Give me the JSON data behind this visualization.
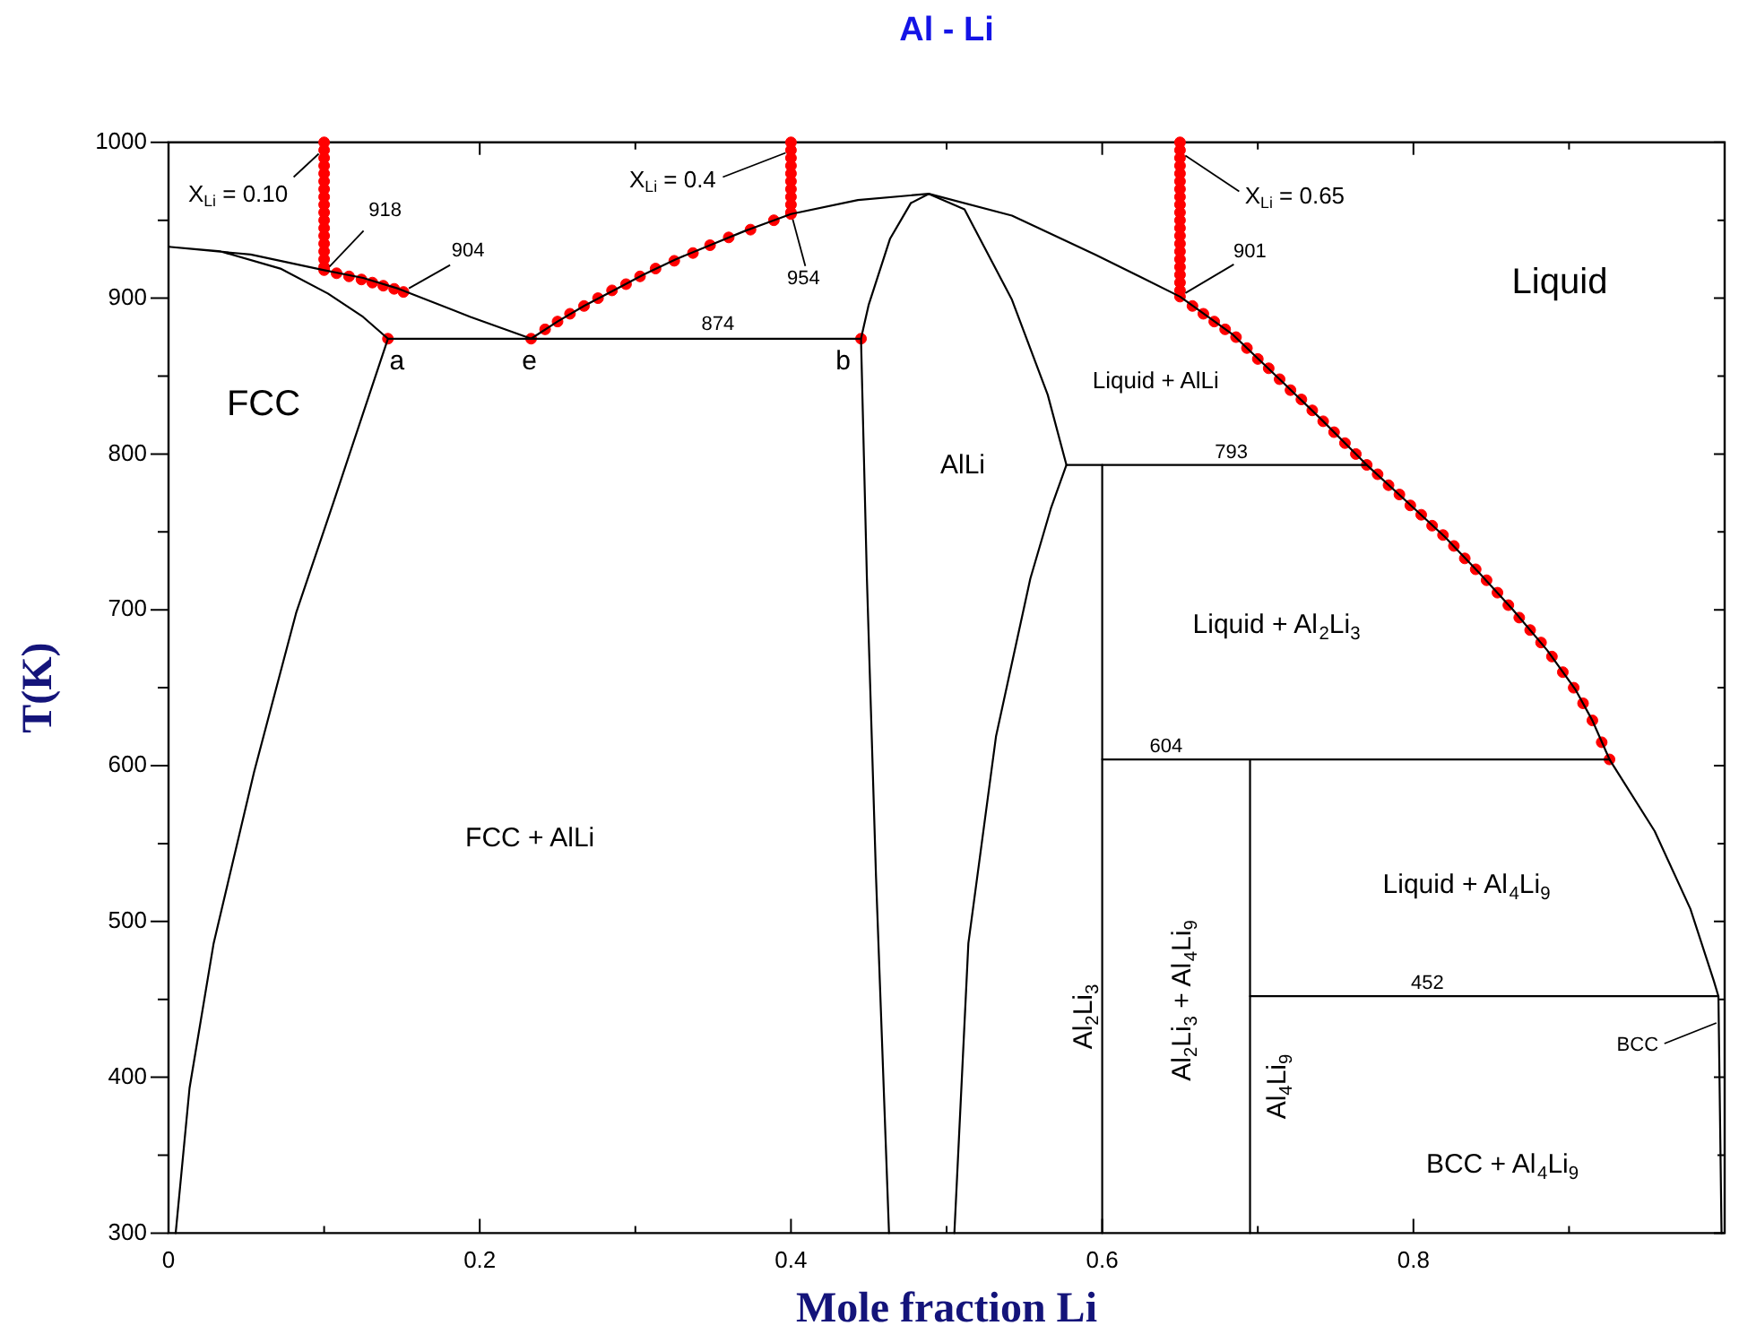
{
  "chart_data": {
    "type": "line",
    "title": "Al - Li",
    "xlabel": "Mole fraction Li",
    "ylabel": "T(K)",
    "xlim": [
      0,
      1
    ],
    "ylim": [
      300,
      1000
    ],
    "xticks": [
      0,
      {
        "value": 0.1,
        "label": null
      },
      0.2,
      {
        "value": 0.3,
        "label": null
      },
      0.4,
      {
        "value": 0.5,
        "label": null
      },
      0.6,
      {
        "value": 0.7,
        "label": null
      },
      0.8,
      {
        "value": 0.9,
        "label": null
      },
      {
        "value": 1,
        "label": null
      }
    ],
    "yticks": [
      300,
      {
        "value": 350,
        "label": null
      },
      400,
      {
        "value": 450,
        "label": null
      },
      500,
      {
        "value": 550,
        "label": null
      },
      600,
      {
        "value": 650,
        "label": null
      },
      700,
      {
        "value": 750,
        "label": null
      },
      800,
      {
        "value": 850,
        "label": null
      },
      900,
      {
        "value": 950,
        "label": null
      },
      1000
    ],
    "series": [
      {
        "color": "#000000",
        "x": [
          0.0046,
          0.0135,
          0.029,
          0.055,
          0.082,
          0.106,
          0.141,
          0.125,
          0.1024,
          0.0719,
          0.0336,
          0,
          0.0528,
          0.1,
          0.125,
          0.148,
          0.194,
          0.233,
          0.25,
          0.267,
          0.286,
          0.305,
          0.326,
          0.348,
          0.37,
          0.389,
          0.4,
          0.443,
          0.4885,
          0.542,
          0.5955,
          0.65,
          0.6835,
          0.714,
          0.741,
          0.77,
          0.794,
          0.82,
          0.842,
          0.864,
          0.886,
          0.904,
          0.915,
          0.926,
          0.955,
          0.978,
          0.993,
          0.996
        ],
        "values": [
          300,
          393,
          486,
          596,
          698,
          769,
          874,
          888,
          903,
          919,
          930,
          933,
          928,
          918,
          913,
          906,
          888,
          874,
          885,
          895,
          905,
          915,
          925,
          934,
          943,
          950,
          954,
          963,
          967,
          953,
          928,
          901,
          877,
          848,
          822,
          793,
          771,
          747,
          724,
          700,
          674,
          649,
          629,
          604,
          558,
          508,
          462,
          452
        ]
      },
      {
        "color": "#000000",
        "x": [
          0.463,
          0.4546,
          0.4488,
          0.445,
          0.45,
          0.4636,
          0.477,
          0.4885,
          0.5115,
          0.542,
          0.565,
          0.577,
          0.567,
          0.5538,
          0.5318,
          0.514,
          0.505
        ],
        "values": [
          300,
          530,
          720,
          874,
          896,
          938,
          961,
          967,
          957,
          899,
          838,
          793,
          765,
          720,
          619,
          486,
          300
        ]
      },
      {
        "color": "#000000",
        "x": [
          0.141,
          0.445
        ],
        "values": [
          874,
          874
        ]
      },
      {
        "color": "#000000",
        "x": [
          0.577,
          0.77
        ],
        "values": [
          793,
          793
        ]
      },
      {
        "color": "#000000",
        "x": [
          0.6,
          0.6
        ],
        "values": [
          793,
          300
        ]
      },
      {
        "color": "#000000",
        "x": [
          0.6,
          0.926
        ],
        "values": [
          604,
          604
        ]
      },
      {
        "color": "#000000",
        "x": [
          0.695,
          0.695
        ],
        "values": [
          604,
          300
        ]
      },
      {
        "color": "#000000",
        "x": [
          0.695,
          0.996,
          0.998
        ],
        "values": [
          452,
          452,
          300
        ]
      },
      {
        "type": "scatter",
        "color": "#ff0000",
        "marker": "circle",
        "x": [
          0.1,
          0.1,
          0.1,
          0.1,
          0.1,
          0.1,
          0.1,
          0.1,
          0.1,
          0.1,
          0.1,
          0.1,
          0.1,
          0.1,
          0.1,
          0.1,
          0.1,
          0.1,
          0.108,
          0.116,
          0.124,
          0.131,
          0.138,
          0.145,
          0.151,
          0.141,
          0.233,
          0.445,
          0.242,
          0.25,
          0.258,
          0.267,
          0.276,
          0.285,
          0.294,
          0.303,
          0.313,
          0.325,
          0.337,
          0.348,
          0.36,
          0.374,
          0.389,
          0.4,
          0.4,
          0.4,
          0.4,
          0.4,
          0.4,
          0.4,
          0.4,
          0.4,
          0.4,
          0.4,
          0.65,
          0.65,
          0.65,
          0.65,
          0.65,
          0.65,
          0.65,
          0.65,
          0.65,
          0.65,
          0.65,
          0.65,
          0.65,
          0.65,
          0.65,
          0.65,
          0.65,
          0.65,
          0.65,
          0.65,
          0.65,
          0.658,
          0.665,
          0.672,
          0.679,
          0.686,
          0.693,
          0.7,
          0.707,
          0.714,
          0.721,
          0.728,
          0.735,
          0.742,
          0.749,
          0.756,
          0.763,
          0.77,
          0.777,
          0.784,
          0.791,
          0.798,
          0.805,
          0.812,
          0.819,
          0.826,
          0.833,
          0.84,
          0.847,
          0.854,
          0.861,
          0.868,
          0.875,
          0.882,
          0.889,
          0.896,
          0.903,
          0.909,
          0.915,
          0.921,
          0.926
        ],
        "values": [
          1000,
          995,
          990,
          985,
          980,
          975,
          970,
          965,
          960,
          955,
          950,
          945,
          940,
          935,
          930,
          925,
          920,
          918,
          916,
          914,
          912,
          910,
          908,
          906,
          904,
          874,
          874,
          874,
          880,
          885,
          890,
          895,
          900,
          905,
          909,
          914,
          919,
          924,
          929,
          934,
          939,
          944,
          950,
          954,
          1000,
          995,
          990,
          985,
          980,
          975,
          970,
          965,
          960,
          955,
          1000,
          995,
          990,
          985,
          980,
          975,
          970,
          965,
          960,
          955,
          950,
          945,
          940,
          935,
          930,
          925,
          920,
          915,
          910,
          905,
          901,
          895,
          890,
          885,
          880,
          875,
          868,
          861,
          855,
          848,
          841,
          835,
          828,
          821,
          814,
          807,
          800,
          793,
          787,
          780,
          774,
          767,
          761,
          754,
          748,
          741,
          733,
          726,
          719,
          711,
          703,
          695,
          687,
          679,
          670,
          660,
          650,
          640,
          629,
          615,
          604
        ]
      }
    ],
    "annotations": [
      {
        "text": "X$_{Li}$ = 0.10",
        "x": 0.1,
        "y": 995
      },
      {
        "text": "918",
        "x": 0.1,
        "y": 918
      },
      {
        "text": "904",
        "x": 0.151,
        "y": 904
      },
      {
        "text": "a",
        "x": 0.141,
        "y": 874
      },
      {
        "text": "e",
        "x": 0.233,
        "y": 874
      },
      {
        "text": "b",
        "x": 0.445,
        "y": 874
      },
      {
        "text": "874",
        "x": 0.353,
        "y": 874
      },
      {
        "text": "X$_{Li}$ = 0.4",
        "x": 0.4,
        "y": 995
      },
      {
        "text": "954",
        "x": 0.4,
        "y": 954
      },
      {
        "text": "X$_{Li}$ = 0.65",
        "x": 0.65,
        "y": 995
      },
      {
        "text": "901",
        "x": 0.65,
        "y": 901
      },
      {
        "text": "793",
        "x": 0.683,
        "y": 793
      },
      {
        "text": "604",
        "x": 0.641,
        "y": 604
      },
      {
        "text": "452",
        "x": 0.809,
        "y": 452
      },
      {
        "text": "BCC",
        "x": 0.997,
        "y": 436
      },
      "Liquid",
      "FCC",
      "FCC + AlLi",
      "AlLi",
      "Liquid + AlLi",
      "Liquid + Al$_{2}$Li$_{3}$",
      "Liquid + Al$_{4}$Li$_{9}$",
      "BCC + Al$_{4}$Li$_{9}$",
      "Al$_{2}$Li$_{3}$",
      "Al$_{2}$Li$_{3}$ + Al$_{4}$Li$_{9}$",
      "Al$_{4}$Li$_{9}$"
    ]
  }
}
